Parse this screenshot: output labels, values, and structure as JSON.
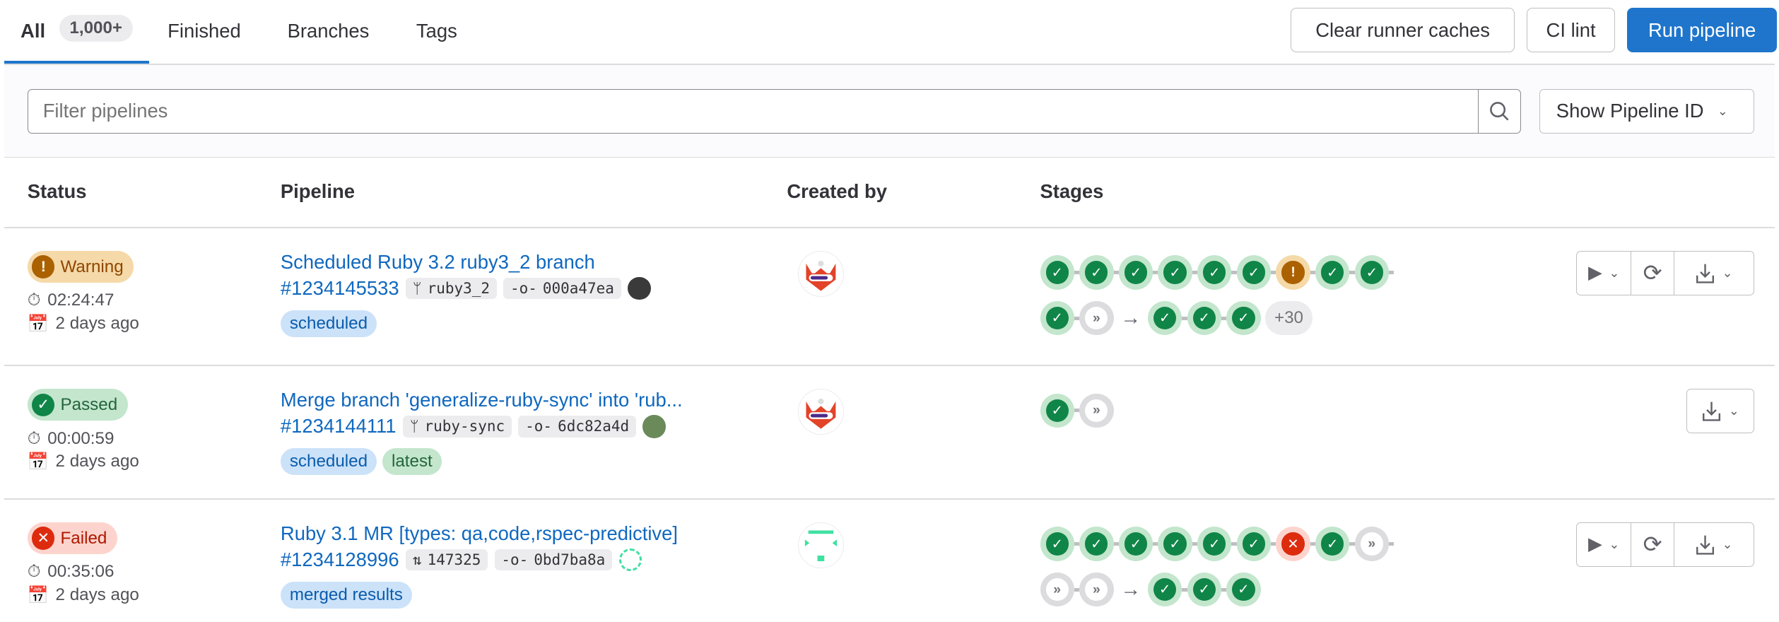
{
  "tabs": [
    {
      "label": "All",
      "count": "1,000+",
      "active": true
    },
    {
      "label": "Finished"
    },
    {
      "label": "Branches"
    },
    {
      "label": "Tags"
    }
  ],
  "toolbar": {
    "clear_caches": "Clear runner caches",
    "ci_lint": "CI lint",
    "run_pipeline": "Run pipeline"
  },
  "filter": {
    "placeholder": "Filter pipelines",
    "show_id": "Show Pipeline ID"
  },
  "columns": {
    "status": "Status",
    "pipeline": "Pipeline",
    "created_by": "Created by",
    "stages": "Stages"
  },
  "colors": {
    "accent": "#1f75cb",
    "success": "#108548",
    "warning": "#ab6100",
    "failed": "#dd2b0e",
    "skipped": "#737278"
  },
  "rows": [
    {
      "status": "Warning",
      "duration": "02:24:47",
      "finished": "2 days ago",
      "title": "Scheduled Ruby 3.2 ruby3_2 branch",
      "id": "#1234145533",
      "ref_icon": "branch-icon",
      "ref": "ruby3_2",
      "commit": "000a47ea",
      "tags": [
        {
          "label": "scheduled",
          "color": "blue"
        }
      ],
      "stages": [
        [
          "success",
          "success",
          "success",
          "success",
          "success",
          "success",
          "warning",
          "success",
          "success"
        ],
        [
          "success",
          "skipped",
          "arrow",
          "success",
          "success",
          "success"
        ]
      ],
      "more": "+30",
      "actions": [
        "play",
        "retry",
        "download"
      ]
    },
    {
      "status": "Passed",
      "duration": "00:00:59",
      "finished": "2 days ago",
      "title": "Merge branch 'generalize-ruby-sync' into 'rub...",
      "id": "#1234144111",
      "ref_icon": "branch-icon",
      "ref": "ruby-sync",
      "commit": "6dc82a4d",
      "tags": [
        {
          "label": "scheduled",
          "color": "blue"
        },
        {
          "label": "latest",
          "color": "green"
        }
      ],
      "stages": [
        [
          "success",
          "skipped"
        ]
      ],
      "actions": [
        "download"
      ]
    },
    {
      "status": "Failed",
      "duration": "00:35:06",
      "finished": "2 days ago",
      "title": "Ruby 3.1 MR [types: qa,code,rspec-predictive]",
      "id": "#1234128996",
      "ref_icon": "merge-request-icon",
      "ref": "147325",
      "commit": "0bd7ba8a",
      "tags": [
        {
          "label": "merged results",
          "color": "blue"
        }
      ],
      "stages": [
        [
          "success",
          "success",
          "success",
          "success",
          "success",
          "success",
          "failed",
          "success",
          "skipped"
        ],
        [
          "skipped",
          "skipped",
          "arrow",
          "success",
          "success",
          "success"
        ]
      ],
      "actions": [
        "play",
        "retry",
        "download"
      ]
    }
  ]
}
